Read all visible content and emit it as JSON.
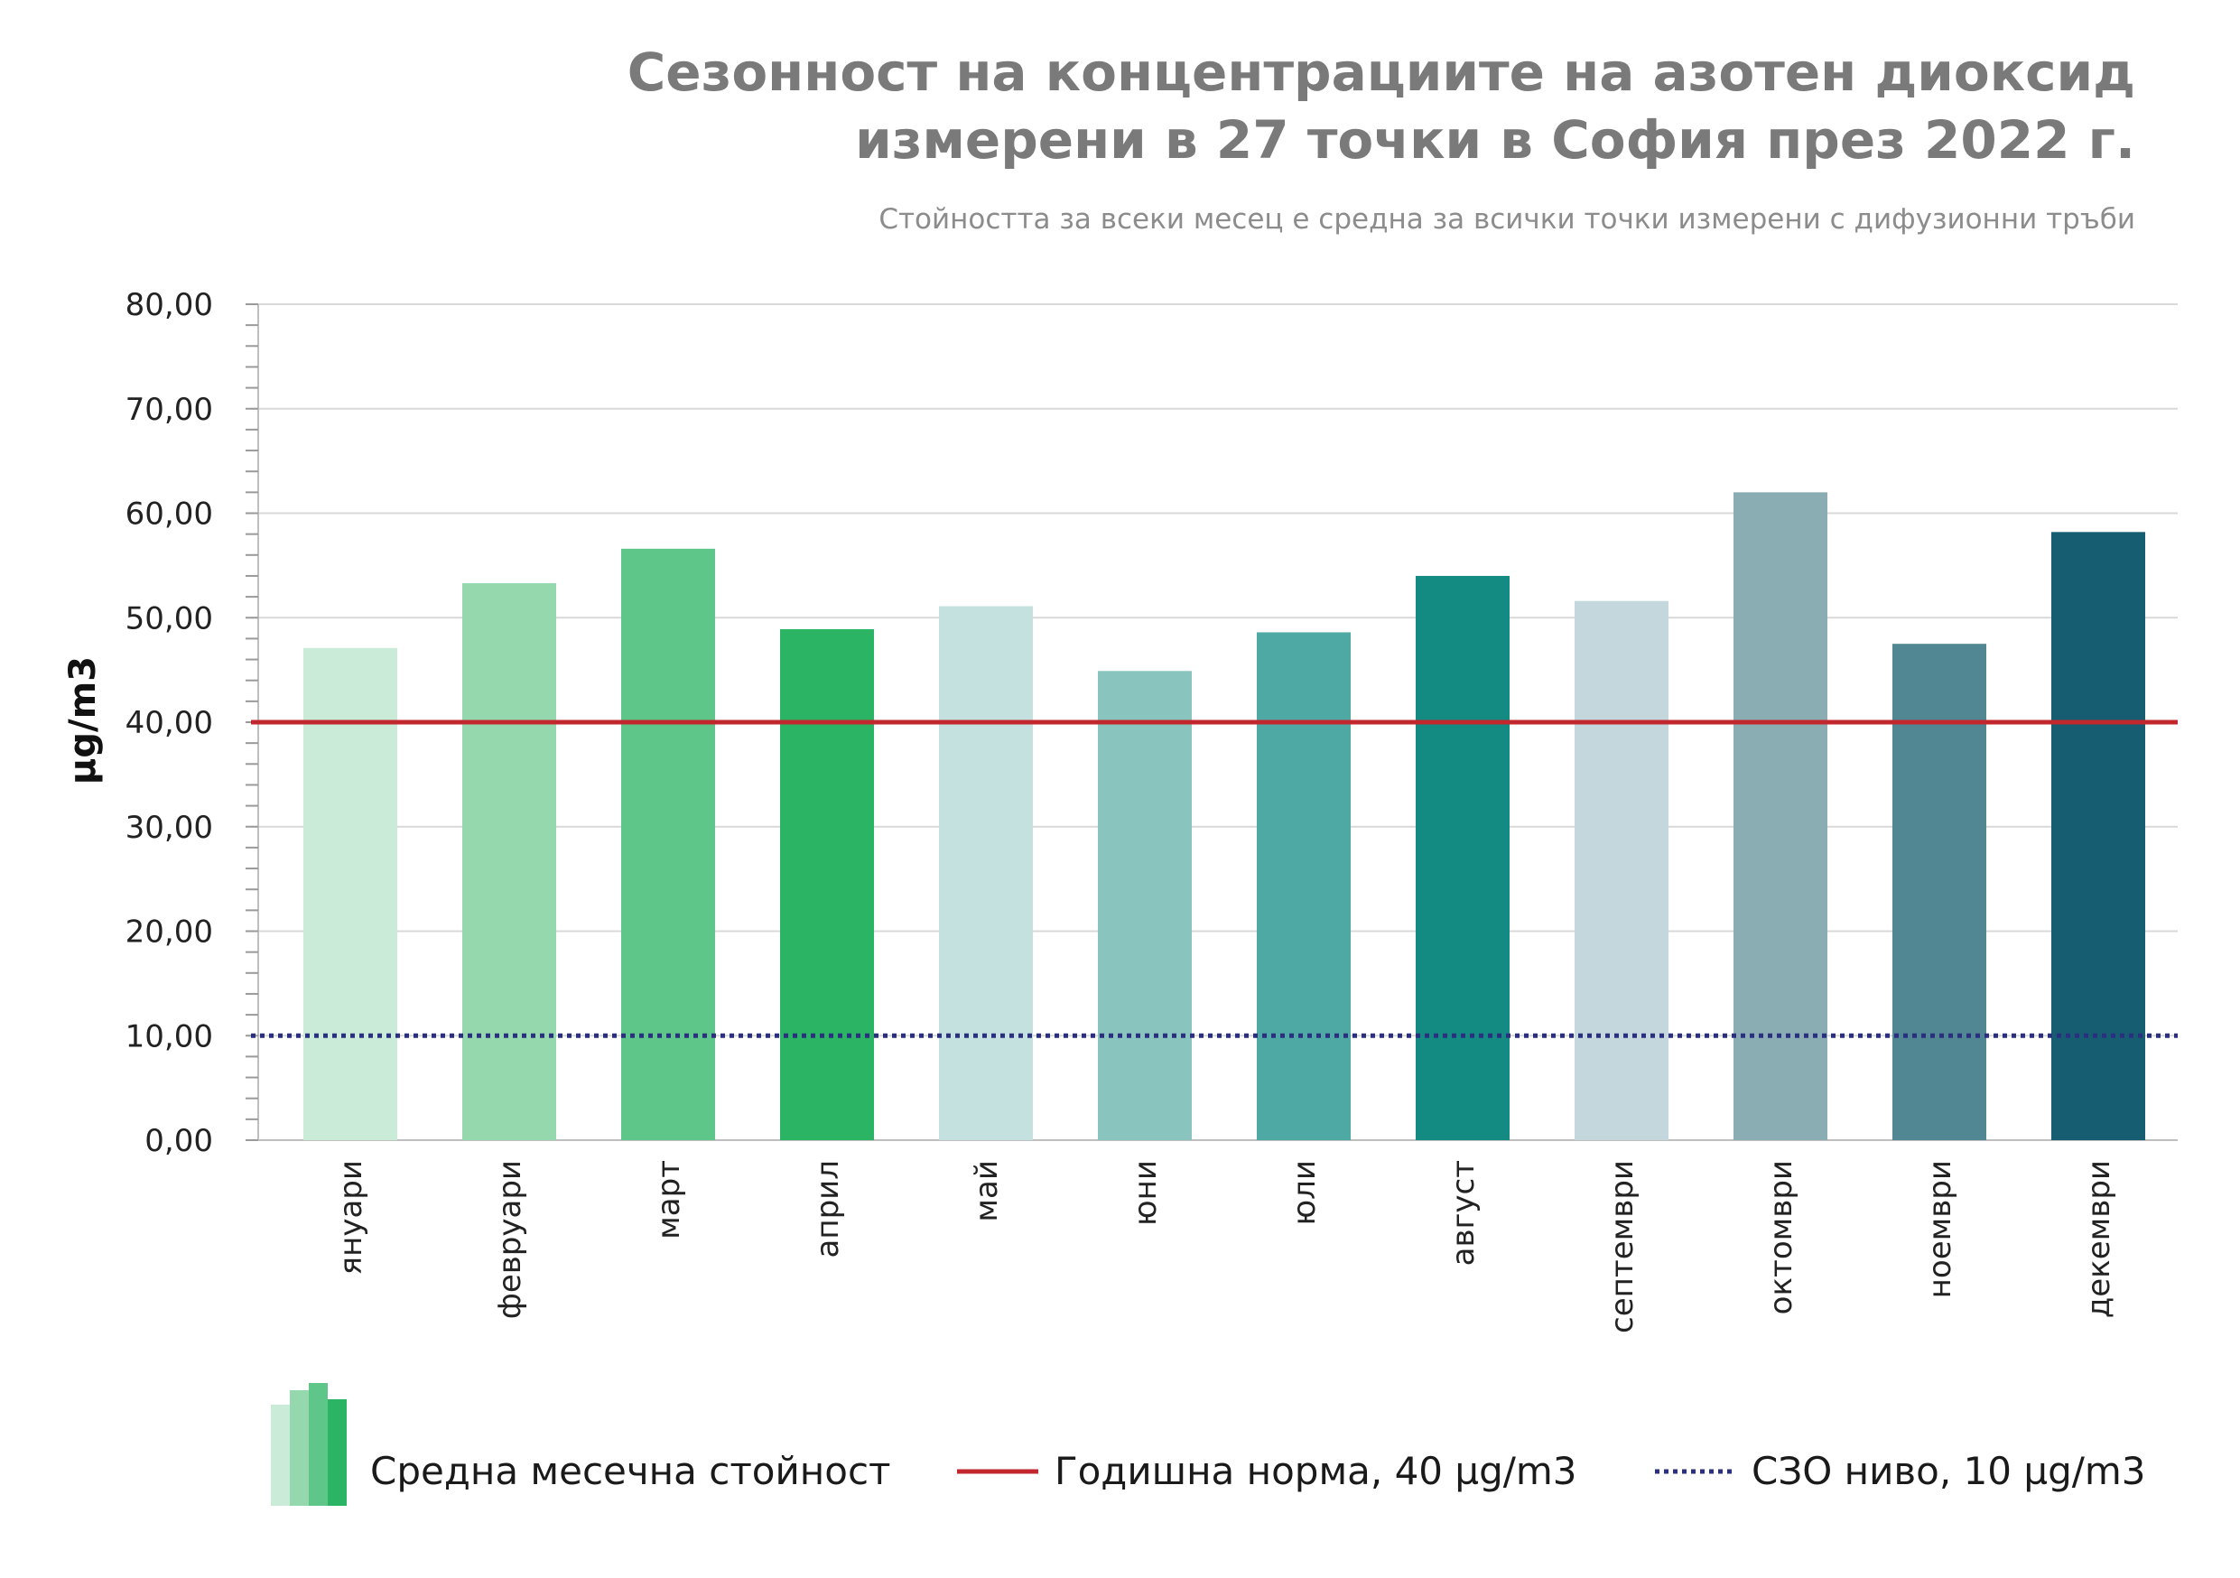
{
  "chart_data": {
    "type": "bar",
    "title": "Сезонност на концентрациите на азотен диоксид измерени в 27 точки в София през 2022 г.",
    "title_lines": [
      "Сезонност на концентрациите на азотен диоксид",
      "измерени в 27 точки в София през 2022 г."
    ],
    "subtitle": "Стойността за всеки месец е средна за всички точки измерени с дифузионни тръби",
    "xlabel": "",
    "ylabel": "µg/m3",
    "ylim": [
      0,
      80
    ],
    "yticks": [
      0,
      10,
      20,
      30,
      40,
      50,
      60,
      70,
      80
    ],
    "ytick_labels": [
      "0,00",
      "10,00",
      "20,00",
      "30,00",
      "40,00",
      "50,00",
      "60,00",
      "70,00",
      "80,00"
    ],
    "grid": true,
    "categories": [
      "януари",
      "февруари",
      "март",
      "април",
      "май",
      "юни",
      "юли",
      "август",
      "септември",
      "октомври",
      "ноември",
      "декември"
    ],
    "series": [
      {
        "name": "Средна месечна стойност",
        "values": [
          47.1,
          53.3,
          56.6,
          48.9,
          51.1,
          44.9,
          48.6,
          54.0,
          51.6,
          62.0,
          47.5,
          58.2
        ],
        "colors": [
          "#c9ebd8",
          "#95d8ae",
          "#5fc689",
          "#2ab463",
          "#c4e1e0",
          "#89c4be",
          "#4ea8a4",
          "#148b82",
          "#c4d7dc",
          "#8aadb4",
          "#508792",
          "#175d71"
        ]
      }
    ],
    "reference_lines": [
      {
        "name": "Годишна норма, 40 µg/m3",
        "value": 40,
        "color": "#c1272d",
        "style": "solid"
      },
      {
        "name": "СЗО ниво, 10 µg/m3",
        "value": 10,
        "color": "#2b2f80",
        "style": "dotted"
      }
    ],
    "legend": {
      "position": "bottom",
      "items": [
        "Средна месечна стойност",
        "Годишна норма, 40 µg/m3",
        "СЗО ниво, 10 µg/m3"
      ],
      "icon_colors": [
        "#c9ebd8",
        "#95d8ae",
        "#5fc689",
        "#2ab463"
      ]
    },
    "gridline_color": "#d9d9d9"
  }
}
